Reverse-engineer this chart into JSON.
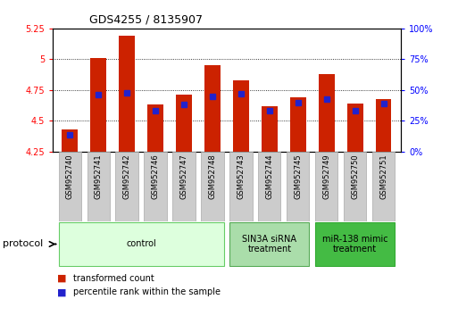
{
  "title": "GDS4255 / 8135907",
  "samples": [
    "GSM952740",
    "GSM952741",
    "GSM952742",
    "GSM952746",
    "GSM952747",
    "GSM952748",
    "GSM952743",
    "GSM952744",
    "GSM952745",
    "GSM952749",
    "GSM952750",
    "GSM952751"
  ],
  "transformed_count": [
    4.43,
    5.01,
    5.19,
    4.63,
    4.71,
    4.95,
    4.83,
    4.62,
    4.69,
    4.88,
    4.64,
    4.68
  ],
  "percentile_rank": [
    14,
    46,
    48,
    33,
    38,
    45,
    47,
    33,
    40,
    43,
    33,
    39
  ],
  "ylim_left": [
    4.25,
    5.25
  ],
  "ylim_right": [
    0,
    100
  ],
  "yticks_left": [
    4.25,
    4.5,
    4.75,
    5.0,
    5.25
  ],
  "yticks_right": [
    0,
    25,
    50,
    75,
    100
  ],
  "ytick_labels_left": [
    "4.25",
    "4.5",
    "4.75",
    "5",
    "5.25"
  ],
  "ytick_labels_right": [
    "0%",
    "25%",
    "50%",
    "75%",
    "100%"
  ],
  "bar_color": "#cc2200",
  "dot_color": "#2222cc",
  "grid_color": "#000000",
  "groups": [
    {
      "label": "control",
      "start": 0,
      "end": 5,
      "color": "#ddffdd",
      "edge_color": "#66cc66"
    },
    {
      "label": "SIN3A siRNA\ntreatment",
      "start": 6,
      "end": 8,
      "color": "#aaddaa",
      "edge_color": "#55aa55"
    },
    {
      "label": "miR-138 mimic\ntreatment",
      "start": 9,
      "end": 11,
      "color": "#44bb44",
      "edge_color": "#33aa33"
    }
  ],
  "legend_items": [
    {
      "label": "transformed count",
      "color": "#cc2200"
    },
    {
      "label": "percentile rank within the sample",
      "color": "#2222cc"
    }
  ],
  "protocol_label": "protocol",
  "bar_width": 0.55,
  "base_value": 4.25,
  "tick_bg_color": "#cccccc",
  "tick_bg_edge": "#aaaaaa"
}
